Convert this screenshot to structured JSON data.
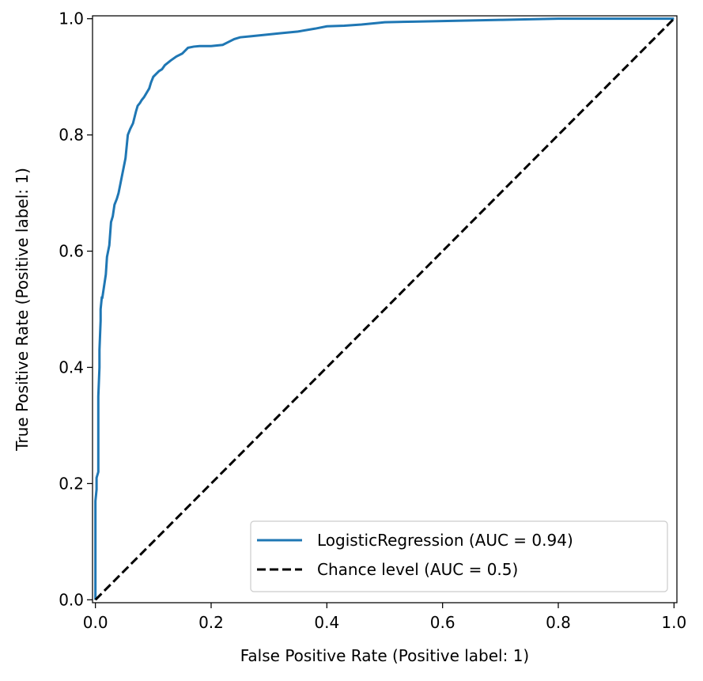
{
  "chart_data": {
    "type": "line",
    "title": "",
    "xlabel": "False Positive Rate (Positive label: 1)",
    "ylabel": "True Positive Rate (Positive label: 1)",
    "xlim": [
      -0.005,
      1.005
    ],
    "ylim": [
      -0.005,
      1.005
    ],
    "xticks": [
      0.0,
      0.2,
      0.4,
      0.6,
      0.8,
      1.0
    ],
    "xtick_labels": [
      "0.0",
      "0.2",
      "0.4",
      "0.6",
      "0.8",
      "1.0"
    ],
    "yticks": [
      0.0,
      0.2,
      0.4,
      0.6,
      0.8,
      1.0
    ],
    "ytick_labels": [
      "0.0",
      "0.2",
      "0.4",
      "0.6",
      "0.8",
      "1.0"
    ],
    "grid": false,
    "legend_position": "lower-right",
    "series": [
      {
        "name": "LogisticRegression (AUC = 0.94)",
        "color": "#1f77b4",
        "style": "solid",
        "x": [
          0.0,
          0.0,
          0.002,
          0.002,
          0.005,
          0.005,
          0.007,
          0.007,
          0.009,
          0.009,
          0.011,
          0.012,
          0.015,
          0.018,
          0.02,
          0.024,
          0.027,
          0.03,
          0.033,
          0.037,
          0.04,
          0.044,
          0.048,
          0.052,
          0.056,
          0.06,
          0.065,
          0.07,
          0.073,
          0.077,
          0.08,
          0.084,
          0.087,
          0.09,
          0.093,
          0.096,
          0.1,
          0.105,
          0.11,
          0.115,
          0.12,
          0.13,
          0.14,
          0.15,
          0.16,
          0.17,
          0.18,
          0.2,
          0.22,
          0.23,
          0.24,
          0.25,
          0.27,
          0.3,
          0.32,
          0.35,
          0.38,
          0.4,
          0.43,
          0.46,
          0.49,
          0.5,
          0.55,
          0.6,
          0.65,
          0.7,
          0.75,
          0.8,
          0.85,
          0.9,
          0.95,
          1.0
        ],
        "y": [
          0.0,
          0.17,
          0.19,
          0.21,
          0.22,
          0.35,
          0.4,
          0.43,
          0.48,
          0.5,
          0.52,
          0.52,
          0.54,
          0.56,
          0.59,
          0.61,
          0.65,
          0.66,
          0.68,
          0.69,
          0.7,
          0.72,
          0.74,
          0.76,
          0.8,
          0.81,
          0.82,
          0.84,
          0.85,
          0.855,
          0.86,
          0.865,
          0.87,
          0.875,
          0.88,
          0.89,
          0.9,
          0.905,
          0.91,
          0.913,
          0.92,
          0.928,
          0.935,
          0.94,
          0.95,
          0.952,
          0.953,
          0.953,
          0.955,
          0.96,
          0.965,
          0.968,
          0.97,
          0.973,
          0.975,
          0.978,
          0.983,
          0.987,
          0.988,
          0.99,
          0.993,
          0.994,
          0.995,
          0.996,
          0.997,
          0.998,
          0.999,
          1.0,
          1.0,
          1.0,
          1.0,
          1.0
        ]
      },
      {
        "name": "Chance level (AUC = 0.5)",
        "color": "#000000",
        "style": "dashed",
        "x": [
          0.0,
          1.0
        ],
        "y": [
          0.0,
          1.0
        ]
      }
    ]
  }
}
